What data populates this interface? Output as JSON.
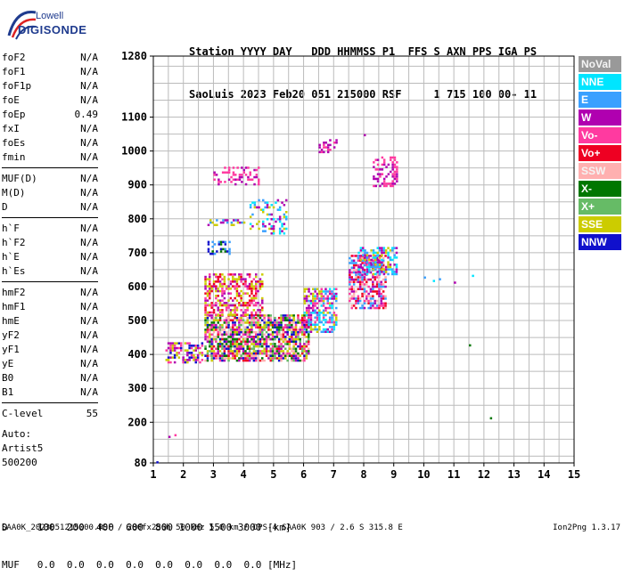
{
  "logo": {
    "company": "Lowell",
    "product": "DIGISONDE"
  },
  "header": {
    "line1": "Station YYYY DAY   DDD HHMMSS P1  FFS S AXN PPS IGA PS",
    "line2": "SaoLuis 2023 Feb20 051 215000 RSF     1 715 100 00- 11"
  },
  "params": [
    [
      {
        "name": "foF2",
        "value": "N/A"
      },
      {
        "name": "foF1",
        "value": "N/A"
      },
      {
        "name": "foF1p",
        "value": "N/A"
      },
      {
        "name": "foE",
        "value": "N/A"
      },
      {
        "name": "foEp",
        "value": "0.49"
      },
      {
        "name": "fxI",
        "value": "N/A"
      },
      {
        "name": "foEs",
        "value": "N/A"
      },
      {
        "name": "fmin",
        "value": "N/A"
      }
    ],
    [
      {
        "name": "MUF(D)",
        "value": "N/A"
      },
      {
        "name": "M(D)",
        "value": "N/A"
      },
      {
        "name": "D",
        "value": "N/A"
      }
    ],
    [
      {
        "name": "h`F",
        "value": "N/A"
      },
      {
        "name": "h`F2",
        "value": "N/A"
      },
      {
        "name": "h`E",
        "value": "N/A"
      },
      {
        "name": "h`Es",
        "value": "N/A"
      }
    ],
    [
      {
        "name": "hmF2",
        "value": "N/A"
      },
      {
        "name": "hmF1",
        "value": "N/A"
      },
      {
        "name": "hmE",
        "value": "N/A"
      },
      {
        "name": "yF2",
        "value": "N/A"
      },
      {
        "name": "yF1",
        "value": "N/A"
      },
      {
        "name": "yE",
        "value": "N/A"
      },
      {
        "name": "B0",
        "value": "N/A"
      },
      {
        "name": "B1",
        "value": "N/A"
      }
    ],
    [
      {
        "name": "C-level",
        "value": "55"
      }
    ]
  ],
  "autoscaling": {
    "label": "Auto:",
    "source": "Artist5",
    "code": "500200"
  },
  "legend": [
    {
      "label": "NoVal",
      "color": "#999999"
    },
    {
      "label": "NNE",
      "color": "#00e5ff"
    },
    {
      "label": "E",
      "color": "#3aa0ff"
    },
    {
      "label": "W",
      "color": "#b000b0"
    },
    {
      "label": "Vo-",
      "color": "#ff3aa0"
    },
    {
      "label": "Vo+",
      "color": "#ee0022"
    },
    {
      "label": "SSW",
      "color": "#ffb0b0"
    },
    {
      "label": "X-",
      "color": "#007700"
    },
    {
      "label": "X+",
      "color": "#66bb66"
    },
    {
      "label": "SSE",
      "color": "#cccc00"
    },
    {
      "label": "NNW",
      "color": "#1010cc"
    }
  ],
  "chart_data": {
    "type": "scatter",
    "xlim": [
      1,
      15
    ],
    "ylim": [
      80,
      1280
    ],
    "x_ticks": [
      "1",
      "2",
      "3",
      "4",
      "5",
      "6",
      "7",
      "8",
      "9",
      "10",
      "11",
      "12",
      "13",
      "14",
      "15"
    ],
    "y_ticks": [
      "80",
      "200",
      "300",
      "400",
      "500",
      "600",
      "700",
      "800",
      "900",
      "1000",
      "1100",
      "1280"
    ],
    "grid": true,
    "regions": [
      {
        "x": [
          1.4,
          2.6
        ],
        "y": [
          380,
          440
        ],
        "density": 0.55,
        "colors": [
          "#1010cc",
          "#b000b0",
          "#cccc00",
          "#ff3aa0"
        ]
      },
      {
        "x": [
          2.7,
          6.2
        ],
        "y": [
          385,
          520
        ],
        "density": 0.75,
        "colors": [
          "#cccc00",
          "#b000b0",
          "#1010cc",
          "#ff3aa0",
          "#ee0022",
          "#007700",
          "#66bb66",
          "#ffb0b0"
        ]
      },
      {
        "x": [
          2.7,
          4.6
        ],
        "y": [
          520,
          640
        ],
        "density": 0.55,
        "colors": [
          "#b000b0",
          "#ff3aa0",
          "#ee0022",
          "#cccc00"
        ]
      },
      {
        "x": [
          6.0,
          7.1
        ],
        "y": [
          470,
          600
        ],
        "density": 0.6,
        "colors": [
          "#3aa0ff",
          "#00e5ff",
          "#b000b0",
          "#cccc00",
          "#ff3aa0"
        ]
      },
      {
        "x": [
          7.5,
          8.7
        ],
        "y": [
          540,
          700
        ],
        "density": 0.65,
        "colors": [
          "#ee0022",
          "#ff3aa0",
          "#b000b0",
          "#ffb0b0",
          "#3aa0ff"
        ]
      },
      {
        "x": [
          7.8,
          9.1
        ],
        "y": [
          640,
          720
        ],
        "density": 0.55,
        "colors": [
          "#3aa0ff",
          "#00e5ff",
          "#b000b0",
          "#cccc00"
        ]
      },
      {
        "x": [
          2.8,
          3.5
        ],
        "y": [
          700,
          740
        ],
        "density": 0.4,
        "colors": [
          "#1010cc",
          "#3aa0ff",
          "#007700"
        ]
      },
      {
        "x": [
          2.8,
          4.0
        ],
        "y": [
          785,
          805
        ],
        "density": 0.35,
        "colors": [
          "#3aa0ff",
          "#cccc00",
          "#b000b0"
        ]
      },
      {
        "x": [
          4.2,
          5.4
        ],
        "y": [
          760,
          860
        ],
        "density": 0.3,
        "colors": [
          "#cccc00",
          "#00e5ff",
          "#3aa0ff",
          "#b000b0"
        ]
      },
      {
        "x": [
          3.0,
          4.5
        ],
        "y": [
          905,
          960
        ],
        "density": 0.35,
        "colors": [
          "#b000b0",
          "#ff3aa0"
        ]
      },
      {
        "x": [
          6.5,
          7.1
        ],
        "y": [
          1000,
          1040
        ],
        "density": 0.4,
        "colors": [
          "#b000b0",
          "#ff3aa0"
        ]
      },
      {
        "x": [
          8.3,
          9.1
        ],
        "y": [
          900,
          990
        ],
        "density": 0.45,
        "colors": [
          "#b000b0",
          "#ff3aa0"
        ]
      }
    ],
    "isolated_points": [
      {
        "x": 10.0,
        "y": 630,
        "color": "#3aa0ff"
      },
      {
        "x": 10.3,
        "y": 620,
        "color": "#00e5ff"
      },
      {
        "x": 10.5,
        "y": 625,
        "color": "#3aa0ff"
      },
      {
        "x": 11.0,
        "y": 615,
        "color": "#b000b0"
      },
      {
        "x": 11.6,
        "y": 635,
        "color": "#00e5ff"
      },
      {
        "x": 11.5,
        "y": 430,
        "color": "#007700"
      },
      {
        "x": 12.2,
        "y": 215,
        "color": "#007700"
      },
      {
        "x": 1.1,
        "y": 85,
        "color": "#1010cc"
      },
      {
        "x": 1.5,
        "y": 160,
        "color": "#b000b0"
      },
      {
        "x": 1.7,
        "y": 165,
        "color": "#ff3aa0"
      },
      {
        "x": 8.0,
        "y": 1050,
        "color": "#b000b0"
      }
    ]
  },
  "bottom_table": {
    "row1": "D     100  200  400  600  800 1000 1500 3000 [km]",
    "row2": "MUF   0.0  0.0  0.0  0.0  0.0  0.0  0.0  0.0 [MHz]"
  },
  "footer": {
    "left": "SAA0K_2023051215000.RSF / 280fx256h 50 kHz 5.0 km / DPS-4 SAA0K 903 / 2.6 S 315.8 E",
    "right": "Ion2Png 1.3.17"
  }
}
